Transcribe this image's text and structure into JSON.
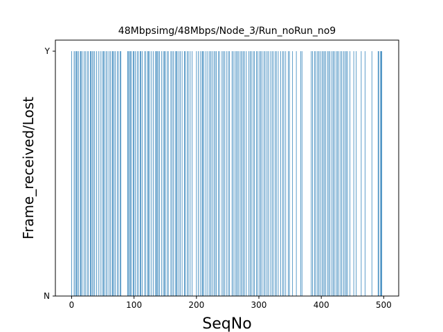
{
  "chart_data": {
    "type": "bar",
    "title": "48Mbpsimg/48Mbps/Node_3/Run_noRun_no9",
    "xlabel": "SeqNo",
    "ylabel": "Frame_received/Lost",
    "xlim": [
      -26,
      524
    ],
    "x_ticks": [
      0,
      100,
      200,
      300,
      400,
      500
    ],
    "y_categories": [
      "N",
      "Y"
    ],
    "bar_color": "#1f77b4",
    "grid": false,
    "received_seqnos": [
      0,
      4,
      6,
      8,
      9,
      11,
      14,
      15,
      17,
      20,
      22,
      25,
      27,
      30,
      31,
      33,
      35,
      37,
      40,
      43,
      46,
      49,
      51,
      52,
      55,
      57,
      60,
      62,
      65,
      66,
      68,
      70,
      73,
      75,
      78,
      79,
      90,
      91,
      93,
      94,
      96,
      99,
      100,
      102,
      105,
      107,
      110,
      111,
      113,
      117,
      119,
      122,
      123,
      125,
      128,
      131,
      134,
      136,
      137,
      139,
      141,
      144,
      147,
      149,
      150,
      153,
      155,
      159,
      161,
      163,
      166,
      168,
      169,
      172,
      174,
      177,
      181,
      182,
      185,
      187,
      190,
      193,
      200,
      203,
      206,
      209,
      210,
      212,
      215,
      218,
      221,
      223,
      225,
      228,
      230,
      232,
      235,
      237,
      241,
      243,
      245,
      248,
      251,
      253,
      257,
      259,
      262,
      264,
      266,
      268,
      271,
      273,
      275,
      277,
      280,
      284,
      286,
      288,
      291,
      293,
      296,
      298,
      301,
      303,
      305,
      308,
      310,
      313,
      315,
      318,
      321,
      323,
      326,
      328,
      331,
      335,
      338,
      340,
      343,
      347,
      349,
      354,
      360,
      367,
      369,
      384,
      386,
      389,
      391,
      394,
      396,
      398,
      401,
      403,
      405,
      407,
      410,
      412,
      414,
      417,
      419,
      421,
      424,
      426,
      428,
      431,
      433,
      436,
      438,
      440,
      442,
      446,
      452,
      456,
      464,
      470,
      481,
      491,
      492,
      495,
      496,
      497
    ]
  }
}
